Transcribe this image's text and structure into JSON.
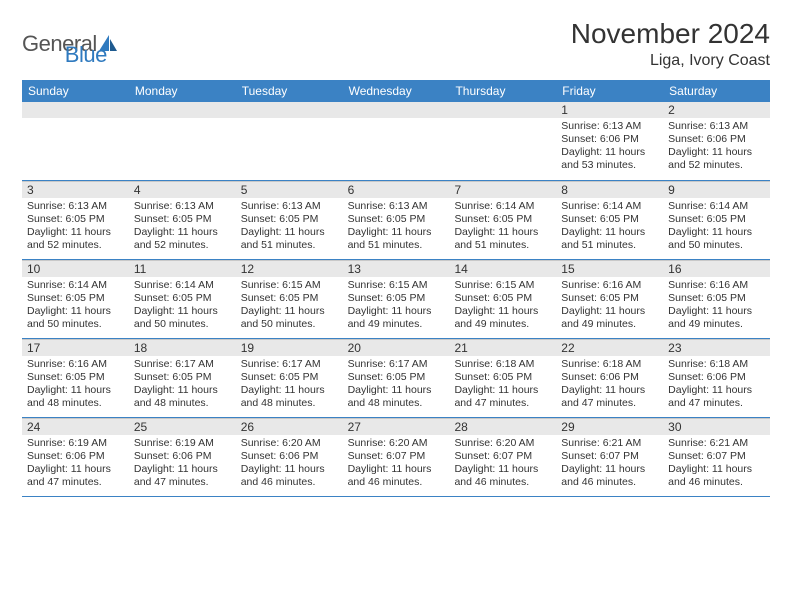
{
  "logo": {
    "part1": "General",
    "part2": "Blue"
  },
  "title": "November 2024",
  "location": "Liga, Ivory Coast",
  "colors": {
    "header_bg": "#3b82c4",
    "header_text": "#ffffff",
    "daynum_bg": "#e8e8e8",
    "border": "#3b82c4",
    "body_bg": "#ffffff",
    "text": "#333333",
    "logo_gray": "#555555",
    "logo_blue": "#2f7abf"
  },
  "typography": {
    "title_fontsize": 28,
    "location_fontsize": 16,
    "dayheader_fontsize": 12,
    "daynum_fontsize": 12,
    "info_fontsize": 10.5
  },
  "day_names": [
    "Sunday",
    "Monday",
    "Tuesday",
    "Wednesday",
    "Thursday",
    "Friday",
    "Saturday"
  ],
  "weeks": [
    [
      null,
      null,
      null,
      null,
      null,
      {
        "n": "1",
        "sr": "6:13 AM",
        "ss": "6:06 PM",
        "dl": "11 hours and 53 minutes."
      },
      {
        "n": "2",
        "sr": "6:13 AM",
        "ss": "6:06 PM",
        "dl": "11 hours and 52 minutes."
      }
    ],
    [
      {
        "n": "3",
        "sr": "6:13 AM",
        "ss": "6:05 PM",
        "dl": "11 hours and 52 minutes."
      },
      {
        "n": "4",
        "sr": "6:13 AM",
        "ss": "6:05 PM",
        "dl": "11 hours and 52 minutes."
      },
      {
        "n": "5",
        "sr": "6:13 AM",
        "ss": "6:05 PM",
        "dl": "11 hours and 51 minutes."
      },
      {
        "n": "6",
        "sr": "6:13 AM",
        "ss": "6:05 PM",
        "dl": "11 hours and 51 minutes."
      },
      {
        "n": "7",
        "sr": "6:14 AM",
        "ss": "6:05 PM",
        "dl": "11 hours and 51 minutes."
      },
      {
        "n": "8",
        "sr": "6:14 AM",
        "ss": "6:05 PM",
        "dl": "11 hours and 51 minutes."
      },
      {
        "n": "9",
        "sr": "6:14 AM",
        "ss": "6:05 PM",
        "dl": "11 hours and 50 minutes."
      }
    ],
    [
      {
        "n": "10",
        "sr": "6:14 AM",
        "ss": "6:05 PM",
        "dl": "11 hours and 50 minutes."
      },
      {
        "n": "11",
        "sr": "6:14 AM",
        "ss": "6:05 PM",
        "dl": "11 hours and 50 minutes."
      },
      {
        "n": "12",
        "sr": "6:15 AM",
        "ss": "6:05 PM",
        "dl": "11 hours and 50 minutes."
      },
      {
        "n": "13",
        "sr": "6:15 AM",
        "ss": "6:05 PM",
        "dl": "11 hours and 49 minutes."
      },
      {
        "n": "14",
        "sr": "6:15 AM",
        "ss": "6:05 PM",
        "dl": "11 hours and 49 minutes."
      },
      {
        "n": "15",
        "sr": "6:16 AM",
        "ss": "6:05 PM",
        "dl": "11 hours and 49 minutes."
      },
      {
        "n": "16",
        "sr": "6:16 AM",
        "ss": "6:05 PM",
        "dl": "11 hours and 49 minutes."
      }
    ],
    [
      {
        "n": "17",
        "sr": "6:16 AM",
        "ss": "6:05 PM",
        "dl": "11 hours and 48 minutes."
      },
      {
        "n": "18",
        "sr": "6:17 AM",
        "ss": "6:05 PM",
        "dl": "11 hours and 48 minutes."
      },
      {
        "n": "19",
        "sr": "6:17 AM",
        "ss": "6:05 PM",
        "dl": "11 hours and 48 minutes."
      },
      {
        "n": "20",
        "sr": "6:17 AM",
        "ss": "6:05 PM",
        "dl": "11 hours and 48 minutes."
      },
      {
        "n": "21",
        "sr": "6:18 AM",
        "ss": "6:05 PM",
        "dl": "11 hours and 47 minutes."
      },
      {
        "n": "22",
        "sr": "6:18 AM",
        "ss": "6:06 PM",
        "dl": "11 hours and 47 minutes."
      },
      {
        "n": "23",
        "sr": "6:18 AM",
        "ss": "6:06 PM",
        "dl": "11 hours and 47 minutes."
      }
    ],
    [
      {
        "n": "24",
        "sr": "6:19 AM",
        "ss": "6:06 PM",
        "dl": "11 hours and 47 minutes."
      },
      {
        "n": "25",
        "sr": "6:19 AM",
        "ss": "6:06 PM",
        "dl": "11 hours and 47 minutes."
      },
      {
        "n": "26",
        "sr": "6:20 AM",
        "ss": "6:06 PM",
        "dl": "11 hours and 46 minutes."
      },
      {
        "n": "27",
        "sr": "6:20 AM",
        "ss": "6:07 PM",
        "dl": "11 hours and 46 minutes."
      },
      {
        "n": "28",
        "sr": "6:20 AM",
        "ss": "6:07 PM",
        "dl": "11 hours and 46 minutes."
      },
      {
        "n": "29",
        "sr": "6:21 AM",
        "ss": "6:07 PM",
        "dl": "11 hours and 46 minutes."
      },
      {
        "n": "30",
        "sr": "6:21 AM",
        "ss": "6:07 PM",
        "dl": "11 hours and 46 minutes."
      }
    ]
  ],
  "labels": {
    "sunrise": "Sunrise:",
    "sunset": "Sunset:",
    "daylight": "Daylight:"
  }
}
